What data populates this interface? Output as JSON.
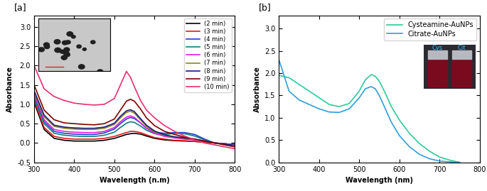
{
  "chart_data": [
    {
      "type": "line",
      "annotations": [
        "[a]"
      ],
      "x_label": "Wavelength (n.m)",
      "y_label": "Absorbance",
      "x": [
        300,
        325,
        350,
        375,
        400,
        425,
        450,
        475,
        500,
        515,
        530,
        540,
        550,
        565,
        580,
        600,
        625,
        650,
        675,
        700,
        725,
        750,
        775,
        800
      ],
      "xlim": [
        300,
        800
      ],
      "xticks": [
        300,
        400,
        500,
        600,
        700,
        800
      ],
      "ylim": [
        -0.5,
        3.3
      ],
      "yticks": [
        {
          "value": -0.5,
          "label": "-0.5"
        },
        {
          "value": 0.0,
          "label": "0.0"
        },
        {
          "value": 0.5,
          "label": "0.5"
        },
        {
          "value": 1.0,
          "label": "1.0"
        },
        {
          "value": 1.5,
          "label": "1.5"
        },
        {
          "value": 2.0,
          "label": "2.0"
        },
        {
          "value": 2.5,
          "label": "2.5"
        },
        {
          "value": 3.0,
          "label": "3.0"
        }
      ],
      "legend": "upper right",
      "series": [
        {
          "name": "(2 min)",
          "color": "#000000",
          "values": [
            1.05,
            0.35,
            0.12,
            0.07,
            0.05,
            0.05,
            0.05,
            0.07,
            0.12,
            0.17,
            0.22,
            0.24,
            0.25,
            0.23,
            0.18,
            0.12,
            0.08,
            0.06,
            0.05,
            0.04,
            0.02,
            0.0,
            -0.02,
            -0.04
          ]
        },
        {
          "name": "(3 min)",
          "color": "#e41a1c",
          "values": [
            1.1,
            0.4,
            0.17,
            0.12,
            0.1,
            0.1,
            0.1,
            0.12,
            0.17,
            0.22,
            0.27,
            0.3,
            0.3,
            0.27,
            0.21,
            0.14,
            0.1,
            0.07,
            0.06,
            0.04,
            0.02,
            0.0,
            -0.02,
            -0.04
          ]
        },
        {
          "name": "(4 min)",
          "color": "#1f3fd0",
          "values": [
            1.2,
            0.55,
            0.3,
            0.25,
            0.23,
            0.22,
            0.22,
            0.26,
            0.36,
            0.5,
            0.62,
            0.66,
            0.63,
            0.52,
            0.38,
            0.28,
            0.25,
            0.27,
            0.27,
            0.22,
            0.1,
            0.0,
            -0.02,
            -0.04
          ]
        },
        {
          "name": "(5 min)",
          "color": "#0f7f7f",
          "values": [
            1.15,
            0.5,
            0.25,
            0.2,
            0.18,
            0.17,
            0.17,
            0.2,
            0.28,
            0.4,
            0.51,
            0.55,
            0.53,
            0.44,
            0.33,
            0.24,
            0.22,
            0.25,
            0.24,
            0.18,
            0.08,
            0.0,
            -0.02,
            -0.04
          ]
        },
        {
          "name": "(6 min)",
          "color": "#e020e0",
          "values": [
            1.25,
            0.6,
            0.35,
            0.3,
            0.28,
            0.27,
            0.27,
            0.3,
            0.4,
            0.55,
            0.67,
            0.7,
            0.66,
            0.52,
            0.38,
            0.25,
            0.17,
            0.13,
            0.1,
            0.08,
            0.04,
            0.0,
            -0.02,
            -0.05
          ]
        },
        {
          "name": "(7 min)",
          "color": "#8a8a1a",
          "values": [
            1.3,
            0.68,
            0.43,
            0.38,
            0.36,
            0.35,
            0.35,
            0.38,
            0.48,
            0.65,
            0.79,
            0.82,
            0.77,
            0.6,
            0.43,
            0.29,
            0.2,
            0.15,
            0.12,
            0.09,
            0.05,
            0.0,
            -0.03,
            -0.06
          ]
        },
        {
          "name": "(8 min)",
          "color": "#1a1a80",
          "values": [
            1.35,
            0.72,
            0.46,
            0.41,
            0.39,
            0.38,
            0.38,
            0.41,
            0.51,
            0.69,
            0.83,
            0.86,
            0.81,
            0.63,
            0.46,
            0.31,
            0.21,
            0.16,
            0.13,
            0.1,
            0.05,
            0.0,
            -0.03,
            -0.06
          ]
        },
        {
          "name": "(9 min)",
          "color": "#800000",
          "values": [
            1.5,
            0.85,
            0.6,
            0.52,
            0.5,
            0.48,
            0.47,
            0.5,
            0.62,
            0.85,
            1.08,
            1.13,
            1.08,
            0.88,
            0.65,
            0.45,
            0.3,
            0.22,
            0.15,
            0.1,
            0.05,
            0.0,
            -0.05,
            -0.1
          ]
        },
        {
          "name": "(10 min)",
          "color": "#e8306e",
          "values": [
            2.0,
            1.4,
            1.2,
            1.1,
            1.03,
            1.0,
            0.98,
            1.0,
            1.15,
            1.5,
            1.85,
            1.7,
            1.45,
            1.1,
            0.85,
            0.65,
            0.45,
            0.3,
            0.18,
            0.08,
            0.0,
            -0.05,
            -0.1,
            -0.15
          ]
        }
      ]
    },
    {
      "type": "line",
      "annotations": [
        "[b]",
        "Cys",
        "Cit"
      ],
      "x_label": "Wavelength (nm)",
      "y_label": "Absorbance",
      "x": [
        300,
        325,
        350,
        375,
        400,
        425,
        450,
        475,
        500,
        515,
        530,
        540,
        550,
        565,
        580,
        600,
        625,
        650,
        675,
        700,
        725,
        750,
        775,
        800
      ],
      "xlim": [
        300,
        800
      ],
      "xticks": [
        300,
        400,
        500,
        600,
        700,
        800
      ],
      "ylim": [
        0.0,
        3.3
      ],
      "yticks": [
        {
          "value": 0.0,
          "label": "0.0"
        },
        {
          "value": 0.5,
          "label": "0.5"
        },
        {
          "value": 1.0,
          "label": "1.0"
        },
        {
          "value": 1.5,
          "label": "1.5"
        },
        {
          "value": 2.0,
          "label": "2.0"
        },
        {
          "value": 2.5,
          "label": "2.5"
        },
        {
          "value": 3.0,
          "label": "3.0"
        }
      ],
      "legend": "upper right",
      "series": [
        {
          "name": "Cysteamine-AuNPs",
          "color": "#30c99a",
          "values": [
            1.95,
            1.9,
            1.75,
            1.6,
            1.45,
            1.3,
            1.25,
            1.32,
            1.6,
            1.85,
            1.97,
            1.93,
            1.82,
            1.55,
            1.25,
            0.95,
            0.65,
            0.42,
            0.25,
            0.12,
            0.05,
            0.0,
            null,
            null
          ]
        },
        {
          "name": "Citrate-AuNPs",
          "color": "#2f9fd8",
          "values": [
            2.3,
            1.6,
            1.4,
            1.3,
            1.2,
            1.13,
            1.12,
            1.2,
            1.45,
            1.65,
            1.7,
            1.65,
            1.5,
            1.2,
            0.9,
            0.6,
            0.35,
            0.18,
            0.08,
            0.03,
            0.01,
            0.0,
            null,
            null
          ]
        }
      ]
    }
  ]
}
